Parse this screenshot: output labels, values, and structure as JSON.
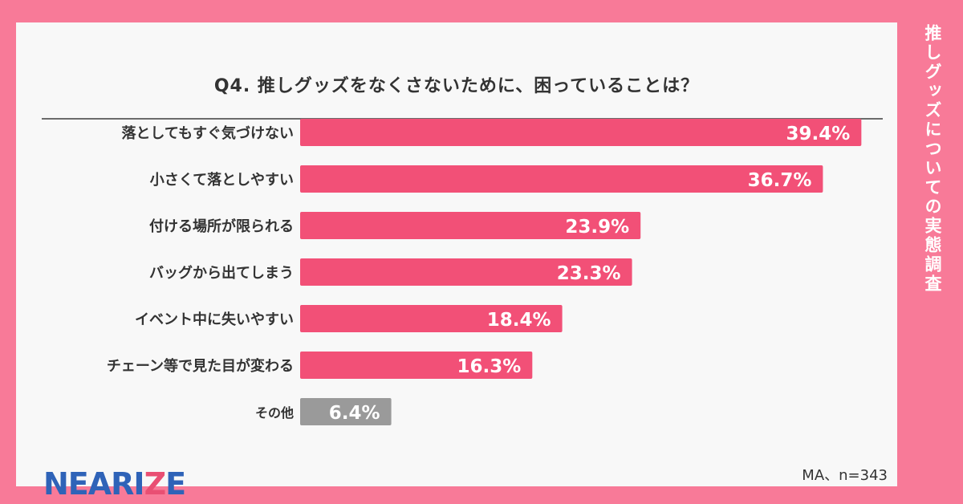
{
  "title": "Q4. 推しグッズをなくさないために、困っていることは？",
  "side_title": "推しグッズについての実態調査",
  "logo": {
    "text": "NEARIZE"
  },
  "note": "MA、n=343",
  "colors": {
    "bar": "#f25077",
    "other_bar": "#9a9a9a",
    "background": "#f87a98",
    "card": "#f8f8f8",
    "logo": "#2f63b8"
  },
  "chart_data": {
    "type": "bar",
    "orientation": "horizontal",
    "title": "Q4. 推しグッズをなくさないために、困っていることは？",
    "categories": [
      "落としてもすぐ気づけない",
      "小さくて落としやすい",
      "付ける場所が限られる",
      "バッグから出てしまう",
      "イベント中に失いやすい",
      "チェーン等で見た目が変わる",
      "その他"
    ],
    "values": [
      39.4,
      36.7,
      23.9,
      23.3,
      18.4,
      16.3,
      6.4
    ],
    "value_labels": [
      "39.4%",
      "36.7%",
      "23.9%",
      "23.3%",
      "18.4%",
      "16.3%",
      "6.4%"
    ],
    "unit": "%",
    "xlim": [
      0,
      40
    ],
    "grid": false,
    "legend": "none"
  }
}
